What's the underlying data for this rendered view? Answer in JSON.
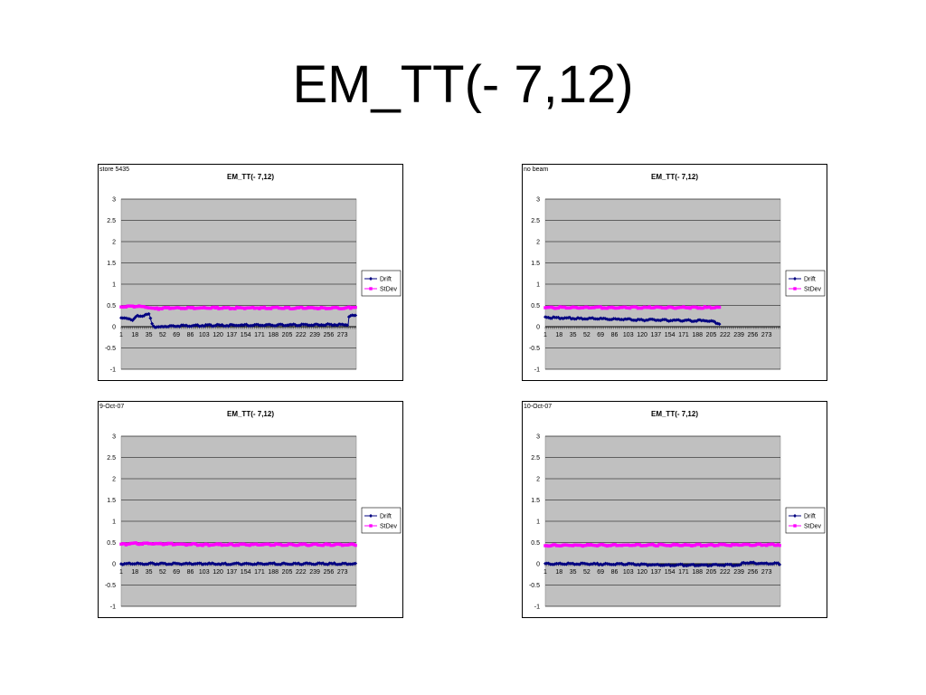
{
  "slide": {
    "title": "EM_TT(- 7,12)"
  },
  "colors": {
    "drift": "#000080",
    "stdev": "#ff00ff",
    "plot_bg": "#c0c0c0",
    "grid": "#000000"
  },
  "chart_data": [
    {
      "type": "line",
      "title": "EM_TT(- 7,12)",
      "corner_label": "store 5435",
      "ylim": [
        -1,
        3
      ],
      "yticks": [
        "3",
        "2.5",
        "2",
        "1.5",
        "1",
        "0.5",
        "0",
        "-0.5",
        "-1"
      ],
      "xlim": [
        1,
        290
      ],
      "xtick_labels": [
        "1",
        "18",
        "35",
        "52",
        "69",
        "86",
        "103",
        "120",
        "137",
        "154",
        "171",
        "188",
        "205",
        "222",
        "239",
        "256",
        "273"
      ],
      "legend_placement": "right",
      "grid": true,
      "series": [
        {
          "name": "Drift",
          "n": 290,
          "segments": [
            [
              1,
              0.19
            ],
            [
              10,
              0.2
            ],
            [
              15,
              0.14
            ],
            [
              20,
              0.25
            ],
            [
              30,
              0.27
            ],
            [
              35,
              0.29
            ],
            [
              40,
              0.02
            ],
            [
              45,
              -0.02
            ],
            [
              50,
              0.0
            ],
            [
              60,
              0.02
            ],
            [
              120,
              0.03
            ],
            [
              200,
              0.04
            ],
            [
              280,
              0.05
            ],
            [
              281,
              0.25
            ],
            [
              290,
              0.26
            ]
          ]
        },
        {
          "name": "StDev",
          "n": 290,
          "segments": [
            [
              1,
              0.47
            ],
            [
              20,
              0.48
            ],
            [
              35,
              0.46
            ],
            [
              40,
              0.42
            ],
            [
              60,
              0.44
            ],
            [
              200,
              0.44
            ],
            [
              280,
              0.44
            ],
            [
              290,
              0.47
            ]
          ]
        }
      ]
    },
    {
      "type": "line",
      "title": "EM_TT(- 7,12)",
      "corner_label": "no beam",
      "ylim": [
        -1,
        3
      ],
      "yticks": [
        "3",
        "2.5",
        "2",
        "1.5",
        "1",
        "0.5",
        "0",
        "-0.5",
        "-1"
      ],
      "xlim": [
        1,
        290
      ],
      "xtick_labels": [
        "1",
        "18",
        "35",
        "52",
        "69",
        "86",
        "103",
        "120",
        "137",
        "154",
        "171",
        "188",
        "205",
        "222",
        "239",
        "256",
        "273"
      ],
      "legend_placement": "right",
      "grid": true,
      "series": [
        {
          "name": "Drift",
          "n": 215,
          "segments": [
            [
              1,
              0.22
            ],
            [
              50,
              0.19
            ],
            [
              100,
              0.17
            ],
            [
              150,
              0.15
            ],
            [
              200,
              0.14
            ],
            [
              215,
              0.08
            ]
          ]
        },
        {
          "name": "StDev",
          "n": 215,
          "segments": [
            [
              1,
              0.45
            ],
            [
              100,
              0.45
            ],
            [
              215,
              0.45
            ]
          ]
        }
      ]
    },
    {
      "type": "line",
      "title": "EM_TT(- 7,12)",
      "corner_label": "9-Oct-07",
      "ylim": [
        -1,
        3
      ],
      "yticks": [
        "3",
        "2.5",
        "2",
        "1.5",
        "1",
        "0.5",
        "0",
        "-0.5",
        "-1"
      ],
      "xlim": [
        1,
        290
      ],
      "xtick_labels": [
        "1",
        "18",
        "35",
        "52",
        "69",
        "86",
        "103",
        "120",
        "137",
        "154",
        "171",
        "188",
        "205",
        "222",
        "239",
        "256",
        "273"
      ],
      "legend_placement": "right",
      "grid": true,
      "series": [
        {
          "name": "Drift",
          "n": 290,
          "segments": [
            [
              1,
              0.0
            ],
            [
              100,
              0.0
            ],
            [
              200,
              0.0
            ],
            [
              290,
              0.0
            ]
          ]
        },
        {
          "name": "StDev",
          "n": 290,
          "segments": [
            [
              1,
              0.46
            ],
            [
              30,
              0.48
            ],
            [
              100,
              0.45
            ],
            [
              200,
              0.45
            ],
            [
              290,
              0.45
            ]
          ]
        }
      ]
    },
    {
      "type": "line",
      "title": "EM_TT(- 7,12)",
      "corner_label": "10-Oct-07",
      "ylim": [
        -1,
        3
      ],
      "yticks": [
        "3",
        "2.5",
        "2",
        "1.5",
        "1",
        "0.5",
        "0",
        "-0.5",
        "-1"
      ],
      "xlim": [
        1,
        290
      ],
      "xtick_labels": [
        "1",
        "18",
        "35",
        "52",
        "69",
        "86",
        "103",
        "120",
        "137",
        "154",
        "171",
        "188",
        "205",
        "222",
        "239",
        "256",
        "273"
      ],
      "legend_placement": "right",
      "grid": true,
      "series": [
        {
          "name": "Drift",
          "n": 290,
          "segments": [
            [
              1,
              0.0
            ],
            [
              100,
              -0.01
            ],
            [
              150,
              -0.03
            ],
            [
              230,
              -0.03
            ],
            [
              240,
              -0.04
            ],
            [
              245,
              0.03
            ],
            [
              260,
              0.01
            ],
            [
              290,
              0.0
            ]
          ]
        },
        {
          "name": "StDev",
          "n": 290,
          "segments": [
            [
              1,
              0.43
            ],
            [
              100,
              0.44
            ],
            [
              200,
              0.44
            ],
            [
              290,
              0.45
            ]
          ]
        }
      ]
    }
  ]
}
